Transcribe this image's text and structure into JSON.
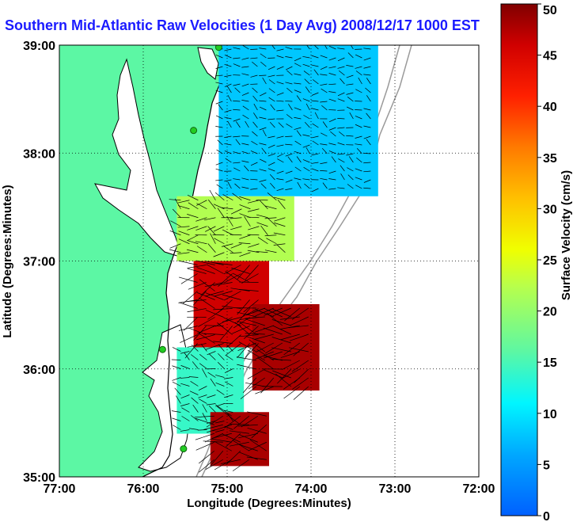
{
  "title": "Southern Mid-Atlantic Raw Velocities (1 Day Avg) 2008/12/17 1000 EST",
  "chart_data": {
    "type": "vector-field-map",
    "title": "Southern Mid-Atlantic Raw Velocities (1 Day Avg) 2008/12/17 1000 EST",
    "xlabel": "Longitude (Degrees:Minutes)",
    "ylabel": "Latitude (Degrees:Minutes)",
    "x_ticks": [
      "77:00",
      "76:00",
      "75:00",
      "74:00",
      "73:00",
      "72:00"
    ],
    "x_tick_values": [
      -77,
      -76,
      -75,
      -74,
      -73,
      -72
    ],
    "y_ticks": [
      "39:00",
      "38:00",
      "37:00",
      "36:00",
      "35:00"
    ],
    "y_tick_values": [
      39,
      38,
      37,
      36,
      35
    ],
    "xlim": [
      -77,
      -72
    ],
    "ylim": [
      35,
      39
    ],
    "grid": true,
    "colorbar": {
      "label": "Surface Velocity (cm/s)",
      "range": [
        0,
        50
      ],
      "ticks": [
        "0",
        "5",
        "10",
        "15",
        "20",
        "25",
        "30",
        "35",
        "40",
        "45",
        "50"
      ],
      "tick_values": [
        0,
        5,
        10,
        15,
        20,
        25,
        30,
        35,
        40,
        45,
        50
      ],
      "colormap": "jet"
    },
    "regions": [
      {
        "lon_range": [
          -75.1,
          -73.2
        ],
        "lat_range": [
          37.6,
          39.0
        ],
        "speed_cm_s": 8
      },
      {
        "lon_range": [
          -75.6,
          -74.2
        ],
        "lat_range": [
          37.0,
          37.6
        ],
        "speed_cm_s": 22
      },
      {
        "lon_range": [
          -75.4,
          -74.5
        ],
        "lat_range": [
          36.2,
          37.0
        ],
        "speed_cm_s": 46
      },
      {
        "lon_range": [
          -74.7,
          -73.9
        ],
        "lat_range": [
          35.8,
          36.6
        ],
        "speed_cm_s": 48
      },
      {
        "lon_range": [
          -75.6,
          -74.8
        ],
        "lat_range": [
          35.4,
          36.2
        ],
        "speed_cm_s": 14
      },
      {
        "lon_range": [
          -75.2,
          -74.5
        ],
        "lat_range": [
          35.1,
          35.6
        ],
        "speed_cm_s": 48
      }
    ],
    "stations": [
      {
        "lon": -75.1,
        "lat": 38.98
      },
      {
        "lon": -75.4,
        "lat": 38.21
      },
      {
        "lon": -75.77,
        "lat": 36.18
      },
      {
        "lon": -75.52,
        "lat": 35.26
      }
    ],
    "colors": {
      "land": "#5cf7a4",
      "coast": "#000000",
      "bathymetry": "#9a9a9a",
      "station": "#22cc22"
    }
  }
}
